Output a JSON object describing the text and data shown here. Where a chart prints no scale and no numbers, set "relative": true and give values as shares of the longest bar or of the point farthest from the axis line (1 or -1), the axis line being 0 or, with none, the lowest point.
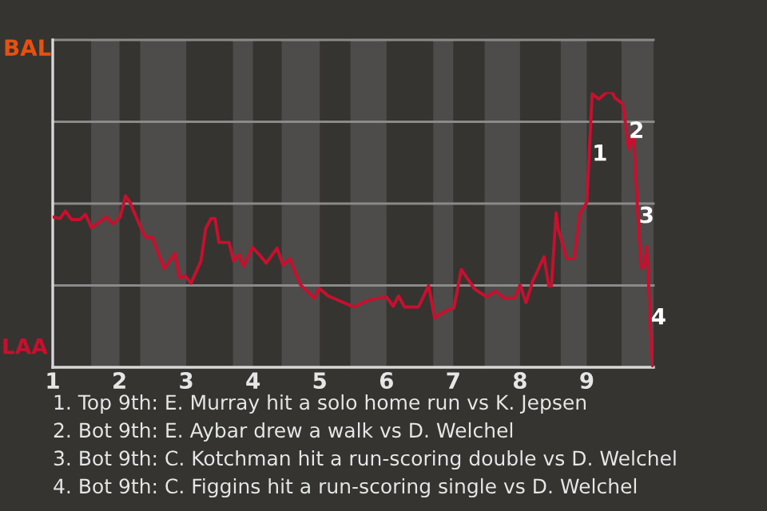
{
  "chart_data": {
    "type": "line",
    "relative": true,
    "xlim": [
      1,
      10
    ],
    "xticks": [
      1,
      2,
      3,
      4,
      5,
      6,
      7,
      8,
      9
    ],
    "grid": "y",
    "marker": "none",
    "line_style": "solid",
    "bands": [
      {
        "axis": "x",
        "from": 1.575,
        "to": 2,
        "color": "#4d4c4a"
      },
      {
        "axis": "x",
        "from": 2.31,
        "to": 3,
        "color": "#4d4c4a"
      },
      {
        "axis": "x",
        "from": 3.7,
        "to": 4,
        "color": "#4d4c4a"
      },
      {
        "axis": "x",
        "from": 4.43,
        "to": 5,
        "color": "#4d4c4a"
      },
      {
        "axis": "x",
        "from": 5.46,
        "to": 6,
        "color": "#4d4c4a"
      },
      {
        "axis": "x",
        "from": 6.7,
        "to": 7,
        "color": "#4d4c4a"
      },
      {
        "axis": "x",
        "from": 7.47,
        "to": 8,
        "color": "#4d4c4a"
      },
      {
        "axis": "x",
        "from": 8.61,
        "to": 9,
        "color": "#4d4c4a"
      },
      {
        "axis": "x",
        "from": 9.52,
        "to": 10,
        "color": "#4d4c4a"
      }
    ],
    "series": [
      {
        "color": "#c8102e",
        "x": [
          1.01,
          1.11,
          1.19,
          1.28,
          1.41,
          1.49,
          1.58,
          1.8,
          1.9,
          2.01,
          2.09,
          2.15,
          2.32,
          2.39,
          2.49,
          2.67,
          2.83,
          2.9,
          2.98,
          3.07,
          3.22,
          3.29,
          3.37,
          3.43,
          3.49,
          3.64,
          3.71,
          3.79,
          3.86,
          3.99,
          4.11,
          4.2,
          4.36,
          4.45,
          4.55,
          4.71,
          4.92,
          4.99,
          5.13,
          5.51,
          5.68,
          5.79,
          6.0,
          6.1,
          6.18,
          6.27,
          6.48,
          6.63,
          6.72,
          6.91,
          7.01,
          7.12,
          7.32,
          7.5,
          7.63,
          7.76,
          7.92,
          8.0,
          8.09,
          8.19,
          8.36,
          8.43,
          8.47,
          8.54,
          8.57,
          8.7,
          8.81,
          8.9,
          9.0,
          9.08,
          9.18,
          9.3,
          9.38,
          9.42,
          9.54,
          9.63,
          9.7,
          9.73,
          9.78,
          9.82,
          9.86,
          9.9,
          9.94,
          9.96,
          9.99
        ],
        "values": [
          0.546,
          0.541,
          0.568,
          0.537,
          0.537,
          0.556,
          0.507,
          0.546,
          0.522,
          0.546,
          0.623,
          0.603,
          0.507,
          0.473,
          0.473,
          0.358,
          0.414,
          0.325,
          0.333,
          0.306,
          0.386,
          0.503,
          0.541,
          0.541,
          0.454,
          0.454,
          0.386,
          0.41,
          0.367,
          0.436,
          0.405,
          0.379,
          0.433,
          0.371,
          0.395,
          0.3,
          0.251,
          0.287,
          0.259,
          0.219,
          0.239,
          0.247,
          0.256,
          0.222,
          0.259,
          0.219,
          0.219,
          0.297,
          0.18,
          0.207,
          0.216,
          0.356,
          0.284,
          0.256,
          0.277,
          0.251,
          0.251,
          0.3,
          0.235,
          0.313,
          0.402,
          0.296,
          0.296,
          0.561,
          0.503,
          0.395,
          0.395,
          0.561,
          0.599,
          0.994,
          0.975,
          1,
          1,
          0.98,
          0.957,
          0.793,
          0.855,
          0.719,
          0.484,
          0.358,
          0.367,
          0.439,
          0.232,
          0.112,
          0.004
        ]
      }
    ],
    "annotations": [
      {
        "text": "1",
        "x": 9.08,
        "y": 0.773
      },
      {
        "text": "2",
        "x": 9.63,
        "y": 0.856
      },
      {
        "text": "3",
        "x": 9.78,
        "y": 0.547
      },
      {
        "text": "4",
        "x": 9.96,
        "y": 0.178
      },
      "BAL",
      "LAA",
      "1. Top 9th: E. Murray hit a solo home run vs K. Jepsen",
      "2. Bot 9th: E. Aybar drew a walk vs D. Welchel",
      "3. Bot 9th: C. Kotchman hit a run-scoring double vs D. Welchel",
      "4. Bot 9th: C. Figgins hit a run-scoring single vs D. Welchel"
    ]
  }
}
